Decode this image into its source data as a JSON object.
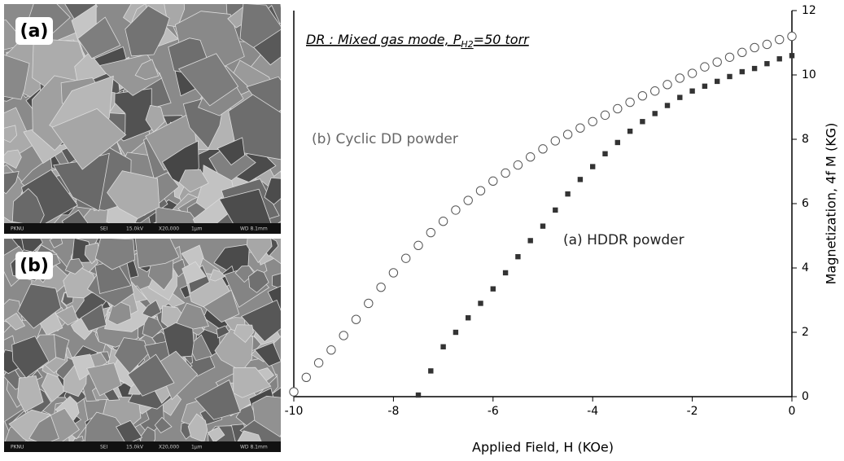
{
  "panels": [
    {
      "label": "(a)",
      "info": [
        "PKNU",
        "SEI",
        "15.0kV",
        "X20,000",
        "1μm",
        "WD 8.1mm"
      ]
    },
    {
      "label": "(b)",
      "info": [
        "PKNU",
        "SEI",
        "15.0kV",
        "X20,000",
        "1μm",
        "WD 8.1mm"
      ]
    }
  ],
  "chart_data": {
    "type": "scatter",
    "annotation": [
      "DR : Mixed gas mode, P",
      "H2",
      "=50 torr"
    ],
    "x_label": "Applied Field, H (KOe)",
    "y_label": "Magnetization, 4f M (KG)",
    "xlim": [
      -10,
      0
    ],
    "xticks": [
      -10,
      -8,
      -6,
      -4,
      -2,
      0
    ],
    "ylim": [
      0,
      12
    ],
    "yticks": [
      0,
      2,
      4,
      6,
      8,
      10,
      12
    ],
    "y_axis_side": "right",
    "grid": false,
    "series": [
      {
        "name": "(b) Cyclic DD powder",
        "color": "#555555",
        "marker": "open-circle",
        "x": [
          -10,
          -9.75,
          -9.5,
          -9.25,
          -9,
          -8.75,
          -8.5,
          -8.25,
          -8,
          -7.75,
          -7.5,
          -7.25,
          -7,
          -6.75,
          -6.5,
          -6.25,
          -6,
          -5.75,
          -5.5,
          -5.25,
          -5,
          -4.75,
          -4.5,
          -4.25,
          -4,
          -3.75,
          -3.5,
          -3.25,
          -3,
          -2.75,
          -2.5,
          -2.25,
          -2,
          -1.75,
          -1.5,
          -1.25,
          -1,
          -0.75,
          -0.5,
          -0.25,
          0
        ],
        "values": [
          0.15,
          0.6,
          1.05,
          1.45,
          1.9,
          2.4,
          2.9,
          3.4,
          3.85,
          4.3,
          4.7,
          5.1,
          5.45,
          5.8,
          6.1,
          6.4,
          6.7,
          6.95,
          7.2,
          7.45,
          7.7,
          7.95,
          8.15,
          8.35,
          8.55,
          8.75,
          8.95,
          9.15,
          9.35,
          9.5,
          9.7,
          9.9,
          10.05,
          10.25,
          10.4,
          10.55,
          10.7,
          10.85,
          10.95,
          11.1,
          11.2
        ]
      },
      {
        "name": "(a) HDDR powder",
        "color": "#333333",
        "marker": "filled-square",
        "x": [
          -7.5,
          -7.25,
          -7,
          -6.75,
          -6.5,
          -6.25,
          -6,
          -5.75,
          -5.5,
          -5.25,
          -5,
          -4.75,
          -4.5,
          -4.25,
          -4,
          -3.75,
          -3.5,
          -3.25,
          -3,
          -2.75,
          -2.5,
          -2.25,
          -2,
          -1.75,
          -1.5,
          -1.25,
          -1,
          -0.75,
          -0.5,
          -0.25,
          0
        ],
        "values": [
          0.05,
          0.8,
          1.55,
          2.0,
          2.45,
          2.9,
          3.35,
          3.85,
          4.35,
          4.85,
          5.3,
          5.8,
          6.3,
          6.75,
          7.15,
          7.55,
          7.9,
          8.25,
          8.55,
          8.8,
          9.05,
          9.3,
          9.5,
          9.65,
          9.8,
          9.95,
          10.1,
          10.2,
          10.35,
          10.5,
          10.6
        ]
      }
    ]
  }
}
